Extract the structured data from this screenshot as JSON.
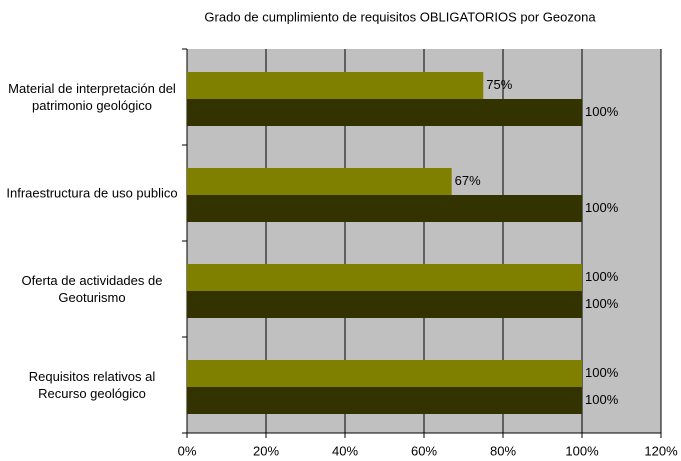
{
  "chart_data": {
    "type": "bar",
    "orientation": "horizontal",
    "title": "Grado de cumplimiento de requisitos OBLIGATORIOS por Geozona",
    "categories": [
      "Material de interpretación del patrimonio geológico",
      "Infraestructura de uso publico",
      "Oferta de actividades de Geoturismo",
      "Requisitos relativos al Recurso geológico"
    ],
    "series": [
      {
        "color": "#808000",
        "values": [
          75,
          67,
          100,
          100
        ],
        "value_labels": [
          "75%",
          "67%",
          "100%",
          "100%"
        ]
      },
      {
        "color": "#333300",
        "values": [
          100,
          100,
          100,
          100
        ],
        "value_labels": [
          "100%",
          "100%",
          "100%",
          "100%"
        ]
      }
    ],
    "xlim": [
      0,
      120
    ],
    "xticks": [
      {
        "value": 0,
        "label": "0%"
      },
      {
        "value": 20,
        "label": "20%"
      },
      {
        "value": 40,
        "label": "40%"
      },
      {
        "value": 60,
        "label": "60%"
      },
      {
        "value": 80,
        "label": "80%"
      },
      {
        "value": 100,
        "label": "100%"
      },
      {
        "value": 120,
        "label": "120%"
      }
    ],
    "grid": true,
    "background": "#c0c0c0"
  }
}
